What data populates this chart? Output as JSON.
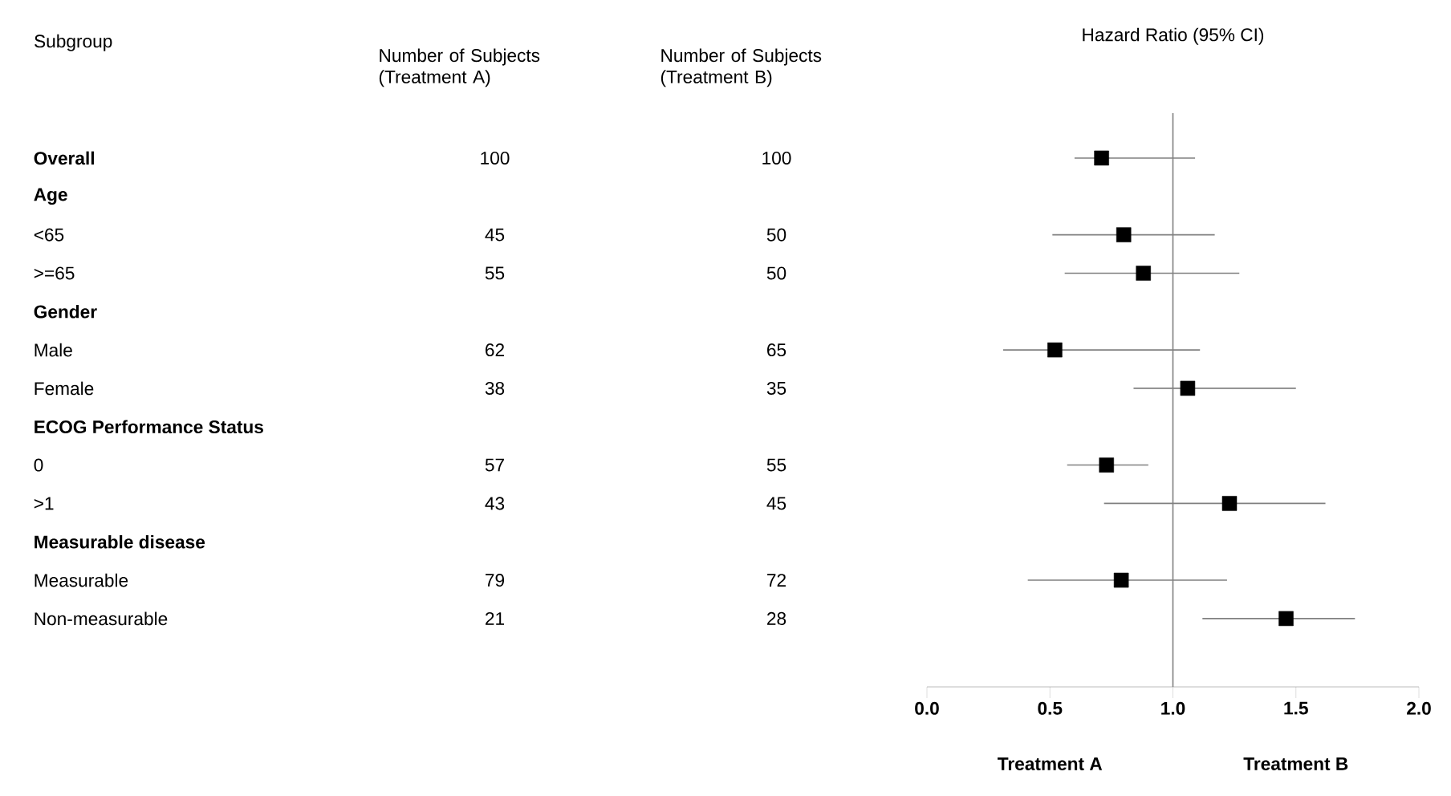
{
  "chart_data": [
    {
      "type": "heatmap",
      "ylabel": "Subgroup",
      "categories": [
        "Number of Subjects (Treatment A)",
        "Number of Subjects (Treatment B)"
      ],
      "y_categories": [
        "**Overall**",
        "**Age**",
        "<65",
        ">=65",
        "**Gender**",
        "Male",
        "Female",
        "**ECOG Performance Status**",
        "0",
        ">1",
        "**Measurable disease**",
        "Measurable",
        "Non-measurable"
      ],
      "cells": [
        [
          100,
          100
        ],
        [
          null,
          null
        ],
        [
          45,
          50
        ],
        [
          55,
          50
        ],
        [
          null,
          null
        ],
        [
          62,
          65
        ],
        [
          38,
          35
        ],
        [
          null,
          null
        ],
        [
          57,
          55
        ],
        [
          43,
          45
        ],
        [
          null,
          null
        ],
        [
          79,
          72
        ],
        [
          21,
          28
        ]
      ],
      "data_labels": true
    },
    {
      "type": "scatter",
      "orientation": "horizontal",
      "title": "Hazard Ratio (95% CI)",
      "categories": [
        null,
        null,
        null,
        null,
        null,
        null,
        null,
        null,
        null,
        null,
        null,
        null,
        null
      ],
      "values": [
        0.71,
        null,
        0.8,
        0.88,
        null,
        0.52,
        1.06,
        null,
        0.73,
        1.23,
        null,
        0.79,
        1.46
      ],
      "errors": [
        [
          0.6,
          1.09
        ],
        null,
        [
          0.51,
          1.17
        ],
        [
          0.56,
          1.27
        ],
        null,
        [
          0.31,
          1.11
        ],
        [
          0.84,
          1.5
        ],
        null,
        [
          0.57,
          0.9
        ],
        [
          0.72,
          1.62
        ],
        null,
        [
          0.41,
          1.22
        ],
        [
          1.12,
          1.74
        ]
      ],
      "color": "#000000",
      "marker": "square",
      "xlim": [
        0,
        2
      ],
      "xticks": [
        {
          "value": 0,
          "label": "0.0"
        },
        {
          "value": 0.5,
          "label": "0.5"
        },
        {
          "value": 1,
          "label": "1.0"
        },
        {
          "value": 1.5,
          "label": "1.5"
        },
        {
          "value": 2,
          "label": "2.0"
        }
      ],
      "ref_lines": [
        {
          "axis": "x",
          "value": 1,
          "color": "#808080"
        }
      ],
      "annotations": [
        "Treatment A",
        "Treatment B"
      ]
    }
  ]
}
